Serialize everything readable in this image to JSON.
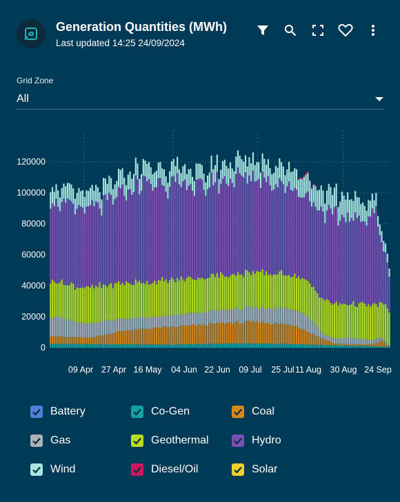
{
  "header": {
    "title": "Generation Quantities (MWh)",
    "subtitle": "Last updated 14:25 24/09/2024",
    "icons": [
      "filter-icon",
      "search-icon",
      "fullscreen-icon",
      "heart-icon",
      "more-vert-icon"
    ]
  },
  "grid_zone": {
    "label": "Grid Zone",
    "value": "All"
  },
  "colors": {
    "background": "#003a57",
    "Battery": "#4f7fd8",
    "Co-Gen": "#11a3a1",
    "Coal": "#d7861a",
    "Gas": "#aab2b8",
    "Geothermal": "#b8dc1e",
    "Hydro": "#7a4fb5",
    "Wind": "#a8e4e0",
    "Diesel/Oil": "#d0175f",
    "Solar": "#f2cf2a"
  },
  "legend": [
    {
      "label": "Battery",
      "color": "#4f7fd8",
      "checked": true
    },
    {
      "label": "Co-Gen",
      "color": "#11a3a1",
      "checked": true
    },
    {
      "label": "Coal",
      "color": "#d7861a",
      "checked": true
    },
    {
      "label": "Gas",
      "color": "#aab2b8",
      "checked": true
    },
    {
      "label": "Geothermal",
      "color": "#b8dc1e",
      "checked": true
    },
    {
      "label": "Hydro",
      "color": "#7a4fb5",
      "checked": true
    },
    {
      "label": "Wind",
      "color": "#a8e4e0",
      "checked": true
    },
    {
      "label": "Diesel/Oil",
      "color": "#d0175f",
      "checked": true
    },
    {
      "label": "Solar",
      "color": "#f2cf2a",
      "checked": true
    }
  ],
  "chart_data": {
    "type": "bar",
    "stacked": true,
    "x_tick_labels": [
      "09 Apr",
      "27 Apr",
      "16 May",
      "04 Jun",
      "22 Jun",
      "09 Jul",
      "25 Jul",
      "11 Aug",
      "30 Aug",
      "24 Sep"
    ],
    "y_tick_labels": [
      "0",
      "20000",
      "40000",
      "60000",
      "80000",
      "100000",
      "120000"
    ],
    "ylim": [
      0,
      140000
    ],
    "grid": true,
    "legend_position": "bottom",
    "series": [
      {
        "name": "Co-Gen",
        "keypoints": [
          [
            0,
            2500
          ],
          [
            60,
            2000
          ],
          [
            100,
            2800
          ],
          [
            135,
            2200
          ],
          [
            170,
            1000
          ],
          [
            179,
            600
          ]
        ]
      },
      {
        "name": "Coal",
        "keypoints": [
          [
            0,
            5000
          ],
          [
            20,
            4000
          ],
          [
            40,
            9000
          ],
          [
            60,
            11000
          ],
          [
            90,
            13000
          ],
          [
            110,
            14000
          ],
          [
            130,
            12000
          ],
          [
            140,
            6000
          ],
          [
            150,
            1000
          ],
          [
            170,
            1000
          ],
          [
            175,
            4000
          ],
          [
            179,
            500
          ]
        ]
      },
      {
        "name": "Gas",
        "keypoints": [
          [
            0,
            13000
          ],
          [
            15,
            10000
          ],
          [
            40,
            8000
          ],
          [
            60,
            7000
          ],
          [
            80,
            8000
          ],
          [
            100,
            9000
          ],
          [
            120,
            10000
          ],
          [
            135,
            10000
          ],
          [
            145,
            3000
          ],
          [
            160,
            4000
          ],
          [
            170,
            3000
          ],
          [
            179,
            1000
          ]
        ]
      },
      {
        "name": "Geothermal",
        "keypoints": [
          [
            0,
            23000
          ],
          [
            179,
            22000
          ]
        ]
      },
      {
        "name": "Hydro",
        "keypoints": [
          [
            0,
            52000
          ],
          [
            25,
            52000
          ],
          [
            50,
            66000
          ],
          [
            80,
            60000
          ],
          [
            100,
            64000
          ],
          [
            120,
            60000
          ],
          [
            135,
            55000
          ],
          [
            145,
            58000
          ],
          [
            165,
            56000
          ],
          [
            172,
            60000
          ],
          [
            176,
            35000
          ],
          [
            179,
            25000
          ]
        ]
      },
      {
        "name": "Wind",
        "keypoints": [
          [
            0,
            10000
          ],
          [
            40,
            11000
          ],
          [
            80,
            10000
          ],
          [
            120,
            12000
          ],
          [
            160,
            14000
          ],
          [
            179,
            5000
          ]
        ]
      },
      {
        "name": "Diesel/Oil",
        "keypoints": [
          [
            0,
            0
          ],
          [
            130,
            0
          ],
          [
            131,
            600
          ],
          [
            135,
            1200
          ],
          [
            140,
            600
          ],
          [
            141,
            0
          ],
          [
            179,
            0
          ]
        ]
      }
    ]
  }
}
